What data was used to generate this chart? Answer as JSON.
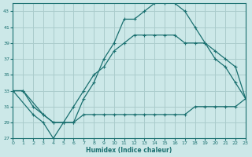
{
  "xlabel": "Humidex (Indice chaleur)",
  "bg_color": "#cce8e8",
  "grid_color": "#aacccc",
  "line_color": "#1a7070",
  "xlim": [
    0,
    23
  ],
  "ylim": [
    27,
    44
  ],
  "xticks": [
    0,
    1,
    2,
    3,
    4,
    5,
    6,
    7,
    8,
    9,
    10,
    11,
    12,
    13,
    14,
    15,
    16,
    17,
    18,
    19,
    20,
    21,
    22,
    23
  ],
  "yticks": [
    27,
    29,
    31,
    33,
    35,
    37,
    39,
    41,
    43
  ],
  "line1_x": [
    0,
    1,
    3,
    4,
    5,
    6,
    7,
    8,
    9,
    10,
    11,
    12,
    13,
    14,
    15,
    16,
    17,
    18,
    19,
    20,
    21,
    22,
    23
  ],
  "line1_y": [
    33,
    33,
    30,
    29,
    29,
    29,
    32,
    34,
    37,
    39,
    42,
    42,
    43,
    44,
    44,
    44,
    43,
    41,
    39,
    37,
    36,
    34,
    32
  ],
  "line2_x": [
    0,
    1,
    2,
    3,
    4,
    5,
    6,
    7,
    8,
    9,
    10,
    11,
    12,
    13,
    14,
    15,
    16,
    17,
    18,
    19,
    20,
    21,
    22,
    23
  ],
  "line2_y": [
    33,
    33,
    31,
    30,
    29,
    29,
    31,
    33,
    35,
    36,
    38,
    39,
    40,
    40,
    40,
    40,
    40,
    39,
    39,
    39,
    38,
    37,
    36,
    32
  ],
  "line3_x": [
    0,
    2,
    3,
    4,
    5,
    6,
    7,
    8,
    9,
    10,
    11,
    12,
    13,
    14,
    15,
    16,
    17,
    18,
    19,
    20,
    21,
    22,
    23
  ],
  "line3_y": [
    33,
    30,
    29,
    27,
    29,
    29,
    30,
    30,
    30,
    30,
    30,
    30,
    30,
    30,
    30,
    30,
    30,
    31,
    31,
    31,
    31,
    31,
    32
  ]
}
